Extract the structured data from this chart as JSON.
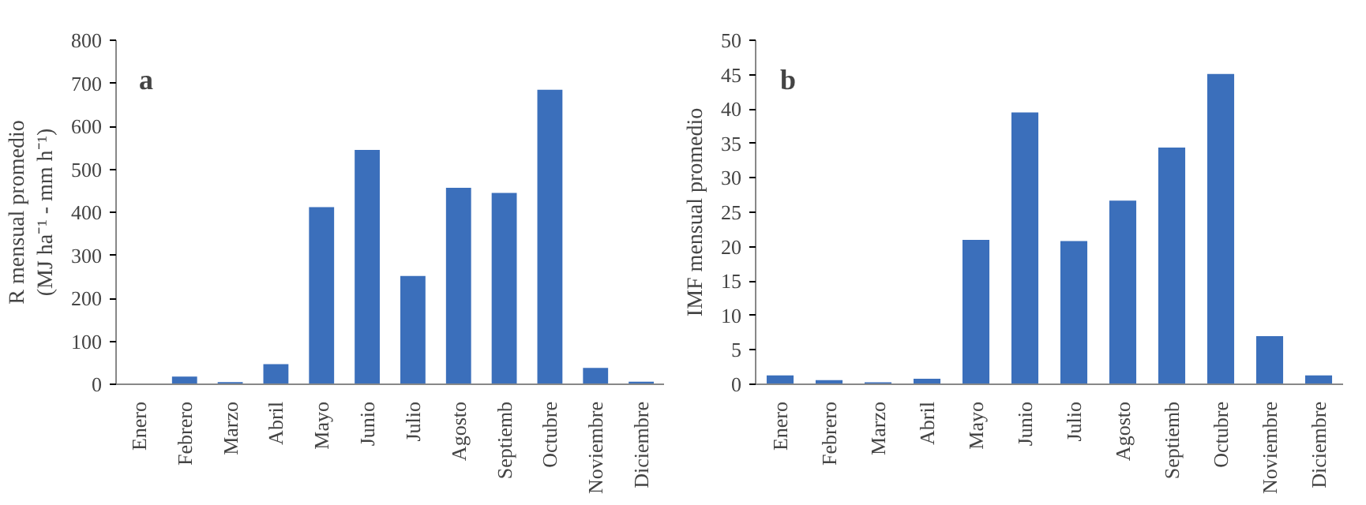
{
  "chart_data": [
    {
      "type": "bar",
      "annotations": [
        "a"
      ],
      "ylabel": "R mensual promedio\n(MJ ha⁻¹ - mm h⁻¹)",
      "categories": [
        "Enero",
        "Febrero",
        "Marzo",
        "Abril",
        "Mayo",
        "Junio",
        "Julio",
        "Agosto",
        "Septiemb",
        "Octubre",
        "Noviembre",
        "Diciembre"
      ],
      "values": [
        0,
        18,
        5,
        47,
        412,
        545,
        252,
        457,
        445,
        685,
        38,
        6
      ],
      "color": "#3b6fbb",
      "ylim": [
        0,
        800
      ],
      "yticks": [
        0,
        100,
        200,
        300,
        400,
        500,
        600,
        700,
        800
      ],
      "grid": false
    },
    {
      "type": "bar",
      "annotations": [
        "b"
      ],
      "ylabel": "IMF mensual promedio",
      "categories": [
        "Enero",
        "Febrero",
        "Marzo",
        "Abril",
        "Mayo",
        "Junio",
        "Julio",
        "Agosto",
        "Septiemb",
        "Octubre",
        "Noviembre",
        "Diciembre"
      ],
      "values": [
        1.3,
        0.6,
        0.3,
        0.8,
        21,
        39.5,
        20.8,
        26.7,
        34.4,
        45.1,
        7,
        1.3
      ],
      "color": "#3b6fbb",
      "ylim": [
        0,
        50
      ],
      "yticks": [
        0,
        5,
        10,
        15,
        20,
        25,
        30,
        35,
        40,
        45,
        50
      ],
      "grid": false
    }
  ]
}
